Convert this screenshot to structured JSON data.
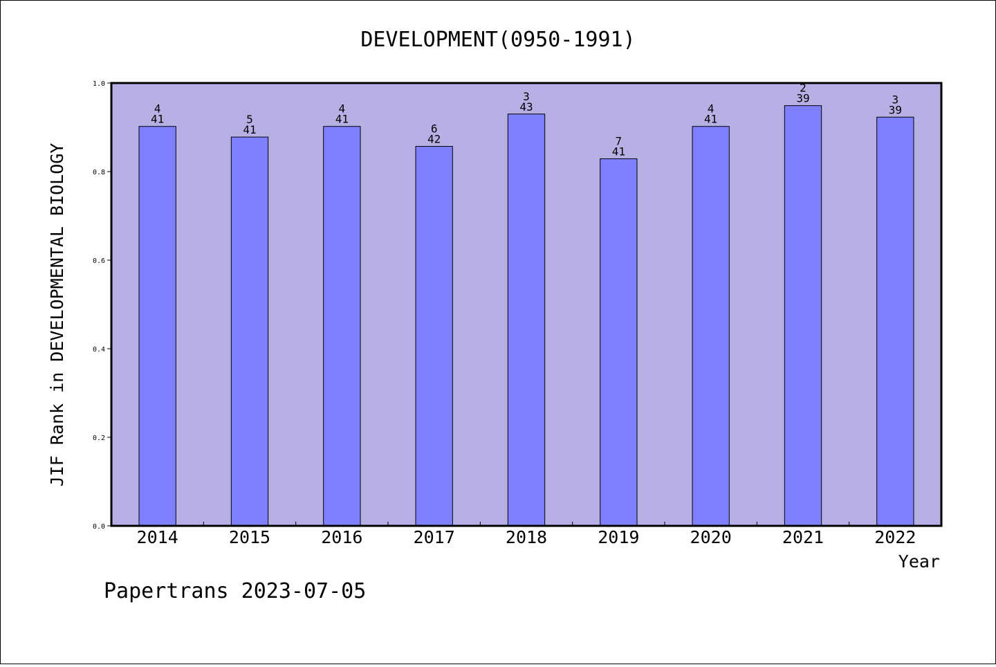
{
  "chart_data": {
    "type": "bar",
    "title": "DEVELOPMENT(0950-1991)",
    "ylabel": "JIF Rank in DEVELOPMENTAL BIOLOGY",
    "xlabel": "Year",
    "categories": [
      "2014",
      "2015",
      "2016",
      "2017",
      "2018",
      "2019",
      "2020",
      "2021",
      "2022"
    ],
    "values": [
      0.902,
      0.878,
      0.902,
      0.857,
      0.93,
      0.829,
      0.902,
      0.949,
      0.923
    ],
    "ranks": [
      "4",
      "5",
      "4",
      "6",
      "3",
      "7",
      "4",
      "2",
      "3"
    ],
    "totals": [
      "41",
      "41",
      "41",
      "42",
      "43",
      "41",
      "41",
      "39",
      "39"
    ],
    "ylim": [
      0,
      1
    ],
    "yticks": [
      "0.0",
      "0.2",
      "0.4",
      "0.6",
      "0.8",
      "1.0"
    ],
    "grid": false,
    "colors": {
      "plot_background": "#b6b0e4",
      "bar_fill": "#8080ff",
      "bar_stroke": "#000000"
    }
  },
  "footer": {
    "text": "Papertrans 2023-07-05"
  }
}
